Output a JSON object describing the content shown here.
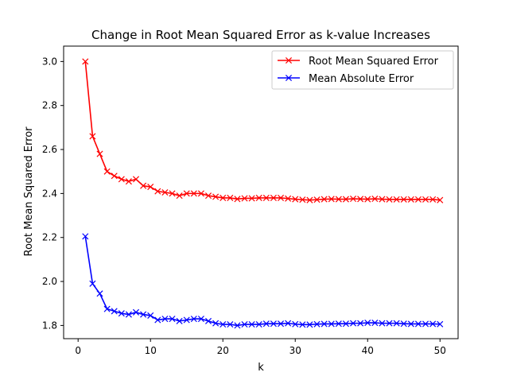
{
  "chart_data": {
    "type": "line",
    "title": "Change in Root Mean Squared Error as k-value Increases",
    "xlabel": "k",
    "ylabel": "Root Mean Squared Error",
    "xlim": [
      -2.0,
      52.5
    ],
    "ylim": [
      1.74,
      3.07
    ],
    "x_ticks": [
      0,
      10,
      20,
      30,
      40,
      50
    ],
    "y_ticks": [
      1.8,
      2.0,
      2.2,
      2.4,
      2.6,
      2.8,
      3.0
    ],
    "legend_position": "top-right",
    "grid": false,
    "x": [
      1,
      2,
      3,
      4,
      5,
      6,
      7,
      8,
      9,
      10,
      11,
      12,
      13,
      14,
      15,
      16,
      17,
      18,
      19,
      20,
      21,
      22,
      23,
      24,
      25,
      26,
      27,
      28,
      29,
      30,
      31,
      32,
      33,
      34,
      35,
      36,
      37,
      38,
      39,
      40,
      41,
      42,
      43,
      44,
      45,
      46,
      47,
      48,
      49,
      50
    ],
    "series": [
      {
        "name": "Root Mean Squared Error",
        "color": "#ff0000",
        "marker": "x",
        "values": [
          3.0,
          2.66,
          2.58,
          2.5,
          2.48,
          2.465,
          2.455,
          2.465,
          2.435,
          2.43,
          2.41,
          2.405,
          2.4,
          2.39,
          2.4,
          2.4,
          2.4,
          2.39,
          2.385,
          2.38,
          2.38,
          2.375,
          2.378,
          2.378,
          2.38,
          2.38,
          2.38,
          2.38,
          2.377,
          2.374,
          2.372,
          2.37,
          2.372,
          2.374,
          2.375,
          2.374,
          2.374,
          2.376,
          2.375,
          2.374,
          2.376,
          2.374,
          2.373,
          2.373,
          2.373,
          2.373,
          2.373,
          2.373,
          2.373,
          2.37
        ]
      },
      {
        "name": "Mean Absolute Error",
        "color": "#0000ff",
        "marker": "x",
        "values": [
          2.205,
          1.99,
          1.945,
          1.875,
          1.865,
          1.855,
          1.85,
          1.86,
          1.85,
          1.845,
          1.825,
          1.83,
          1.83,
          1.82,
          1.825,
          1.83,
          1.83,
          1.82,
          1.81,
          1.805,
          1.805,
          1.8,
          1.805,
          1.805,
          1.805,
          1.808,
          1.808,
          1.808,
          1.81,
          1.806,
          1.804,
          1.804,
          1.806,
          1.807,
          1.807,
          1.808,
          1.808,
          1.81,
          1.81,
          1.812,
          1.812,
          1.81,
          1.81,
          1.81,
          1.808,
          1.807,
          1.807,
          1.807,
          1.807,
          1.806
        ]
      }
    ]
  }
}
